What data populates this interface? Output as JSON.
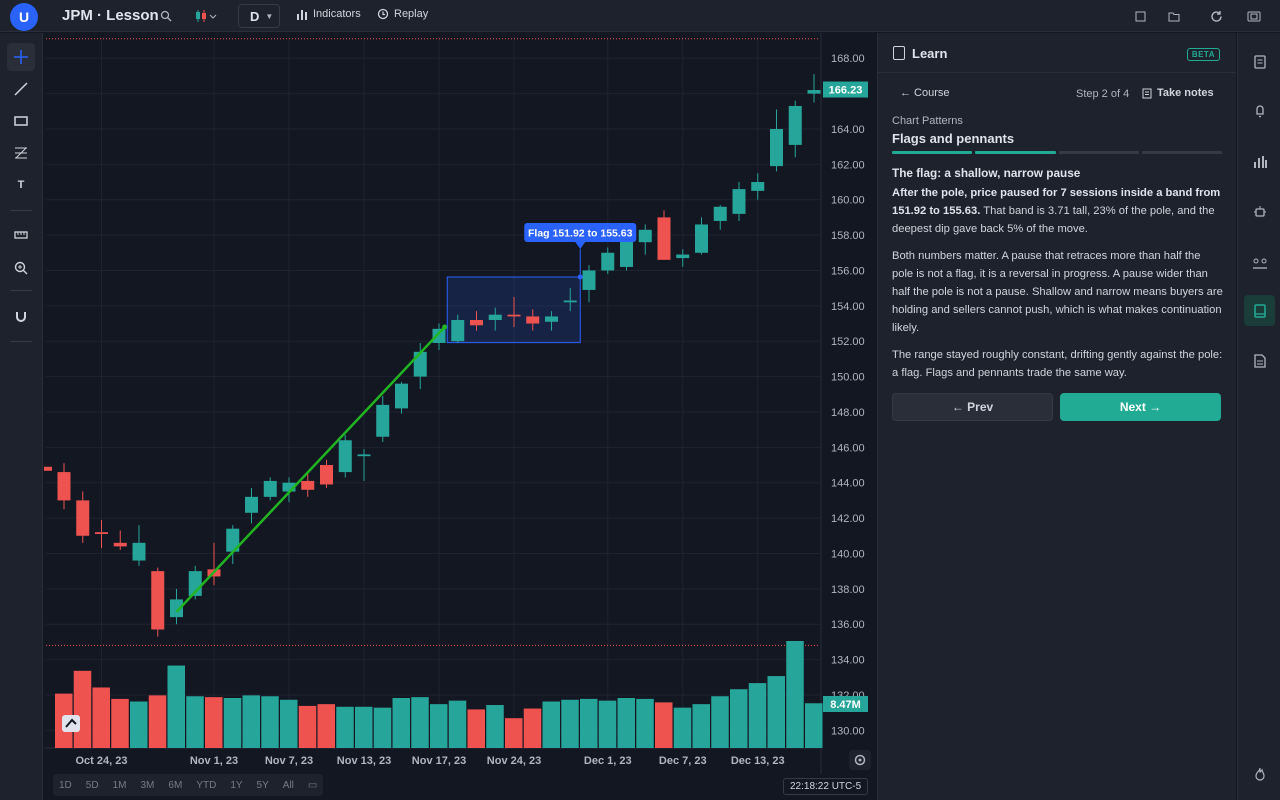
{
  "topbar": {
    "avatar": "U",
    "symbol": "JPM · Lesson",
    "interval": "D",
    "indicators_label": "Indicators",
    "replay_label": "Replay"
  },
  "chart_data": {
    "type": "candlestick",
    "ylim": [
      129,
      169.2
    ],
    "y_ticks": [
      "168.00",
      "166.00",
      "164.00",
      "162.00",
      "160.00",
      "158.00",
      "156.00",
      "154.00",
      "152.00",
      "150.00",
      "148.00",
      "146.00",
      "144.00",
      "142.00",
      "140.00",
      "138.00",
      "136.00",
      "134.00",
      "132.00",
      "130.00"
    ],
    "x_ticks": [
      {
        "label": "Oct 24, 23",
        "index": 2
      },
      {
        "label": "Nov 1, 23",
        "index": 8
      },
      {
        "label": "Nov 7, 23",
        "index": 12
      },
      {
        "label": "Nov 13, 23",
        "index": 16
      },
      {
        "label": "Nov 17, 23",
        "index": 20
      },
      {
        "label": "Nov 24, 23",
        "index": 24
      },
      {
        "label": "Dec 1, 23",
        "index": 29
      },
      {
        "label": "Dec 7, 23",
        "index": 33
      },
      {
        "label": "Dec 13, 23",
        "index": 37
      }
    ],
    "candles": [
      {
        "o": 144.6,
        "h": 145.1,
        "l": 142.5,
        "c": 143.0
      },
      {
        "o": 143.0,
        "h": 143.5,
        "l": 140.6,
        "c": 141.0
      },
      {
        "o": 141.2,
        "h": 141.9,
        "l": 140.3,
        "c": 141.1
      },
      {
        "o": 140.6,
        "h": 141.3,
        "l": 140.2,
        "c": 140.4
      },
      {
        "o": 139.6,
        "h": 141.6,
        "l": 139.3,
        "c": 140.6
      },
      {
        "o": 139.0,
        "h": 139.2,
        "l": 135.3,
        "c": 135.7
      },
      {
        "o": 136.4,
        "h": 138.0,
        "l": 136.0,
        "c": 137.4
      },
      {
        "o": 137.6,
        "h": 139.3,
        "l": 137.4,
        "c": 139.0
      },
      {
        "o": 139.1,
        "h": 140.6,
        "l": 138.2,
        "c": 138.7
      },
      {
        "o": 140.1,
        "h": 141.6,
        "l": 139.4,
        "c": 141.4
      },
      {
        "o": 142.3,
        "h": 143.7,
        "l": 141.7,
        "c": 143.2
      },
      {
        "o": 143.2,
        "h": 144.3,
        "l": 143.0,
        "c": 144.1
      },
      {
        "o": 143.5,
        "h": 144.3,
        "l": 142.9,
        "c": 144.0
      },
      {
        "o": 144.1,
        "h": 144.5,
        "l": 143.2,
        "c": 143.6
      },
      {
        "o": 145.0,
        "h": 145.3,
        "l": 143.7,
        "c": 143.9
      },
      {
        "o": 144.6,
        "h": 146.7,
        "l": 144.3,
        "c": 146.4
      },
      {
        "o": 145.5,
        "h": 145.9,
        "l": 144.1,
        "c": 145.6
      },
      {
        "o": 146.6,
        "h": 148.9,
        "l": 146.3,
        "c": 148.4
      },
      {
        "o": 148.2,
        "h": 149.7,
        "l": 147.9,
        "c": 149.6
      },
      {
        "o": 150.0,
        "h": 151.9,
        "l": 149.3,
        "c": 151.4
      },
      {
        "o": 151.9,
        "h": 153.0,
        "l": 151.5,
        "c": 152.7
      },
      {
        "o": 152.0,
        "h": 153.5,
        "l": 151.9,
        "c": 153.2
      },
      {
        "o": 153.2,
        "h": 153.7,
        "l": 152.6,
        "c": 152.9
      },
      {
        "o": 153.2,
        "h": 153.9,
        "l": 152.6,
        "c": 153.5
      },
      {
        "o": 153.5,
        "h": 154.5,
        "l": 152.8,
        "c": 153.4
      },
      {
        "o": 153.4,
        "h": 153.8,
        "l": 152.6,
        "c": 153.0
      },
      {
        "o": 153.1,
        "h": 153.7,
        "l": 152.6,
        "c": 153.4
      },
      {
        "o": 154.2,
        "h": 155.0,
        "l": 153.7,
        "c": 154.3
      },
      {
        "o": 154.9,
        "h": 156.3,
        "l": 154.2,
        "c": 156.0
      },
      {
        "o": 156.0,
        "h": 157.3,
        "l": 155.8,
        "c": 157.0
      },
      {
        "o": 156.2,
        "h": 158.2,
        "l": 156.0,
        "c": 157.8
      },
      {
        "o": 157.6,
        "h": 158.6,
        "l": 156.9,
        "c": 158.3
      },
      {
        "o": 159.0,
        "h": 159.4,
        "l": 156.6,
        "c": 156.6
      },
      {
        "o": 156.7,
        "h": 157.2,
        "l": 156.2,
        "c": 156.9
      },
      {
        "o": 157.0,
        "h": 159.0,
        "l": 156.9,
        "c": 158.6
      },
      {
        "o": 158.8,
        "h": 159.7,
        "l": 158.3,
        "c": 159.6
      },
      {
        "o": 159.2,
        "h": 161.0,
        "l": 158.8,
        "c": 160.6
      },
      {
        "o": 160.5,
        "h": 161.5,
        "l": 160.0,
        "c": 161.0
      },
      {
        "o": 161.9,
        "h": 165.1,
        "l": 161.6,
        "c": 164.0
      },
      {
        "o": 163.1,
        "h": 165.6,
        "l": 162.4,
        "c": 165.3
      },
      {
        "o": 166.0,
        "h": 167.1,
        "l": 165.5,
        "c": 166.2
      }
    ],
    "volumes": [
      62,
      88,
      69,
      56,
      53,
      60,
      94,
      59,
      58,
      57,
      60,
      59,
      55,
      48,
      50,
      47,
      47,
      46,
      57,
      58,
      50,
      54,
      44,
      49,
      34,
      45,
      53,
      55,
      56,
      54,
      57,
      56,
      52,
      46,
      50,
      59,
      67,
      74,
      82,
      122,
      51
    ],
    "trend_line": {
      "from": {
        "index": 6,
        "y": 136.7
      },
      "to": {
        "index": 20.3,
        "y": 152.8
      }
    },
    "flag_box": {
      "from_index": 21,
      "to_index": 27,
      "y_low": 151.92,
      "y_high": 155.63
    },
    "flag_label": "Flag 151.92 to 155.63",
    "last_price_label": "166.23",
    "volume_label": "8.47M",
    "upper_dotted_y": 169.1,
    "lower_dotted_y": 134.8,
    "colors": {
      "up": "#26a69a",
      "down": "#ef5350",
      "trend": "#21b521",
      "box": "#2962ff",
      "label_bg": "#2962ff"
    }
  },
  "bottombar": {
    "ranges": [
      "1D",
      "5D",
      "1M",
      "3M",
      "6M",
      "YTD",
      "1Y",
      "5Y",
      "All"
    ],
    "clock": "22:18:22 UTC-5"
  },
  "learn": {
    "title": "Learn",
    "badge": "BETA",
    "back": "← Course",
    "step": "Step 2 of 4",
    "notes": "Take notes",
    "crumb": "Chart Patterns",
    "lesson_title": "Flags and pennants",
    "progress": [
      true,
      true,
      false,
      false
    ],
    "heading": "The flag: a shallow, narrow pause",
    "p1_bold": "After the pole, price paused for 7 sessions inside a band from 151.92 to 155.63.",
    "p1_rest": " That band is 3.71 tall, 23% of the pole, and the deepest dip gave back 5% of the move.",
    "p2": "Both numbers matter. A pause that retraces more than half the pole is not a flag, it is a reversal in progress. A pause wider than half the pole is not a pause. Shallow and narrow means buyers are holding and sellers cannot push, which is what makes continuation likely.",
    "p3": "The range stayed roughly constant, drifting gently against the pole: a flag. Flags and pennants trade the same way.",
    "prev": "← Prev",
    "next": "Next →"
  }
}
